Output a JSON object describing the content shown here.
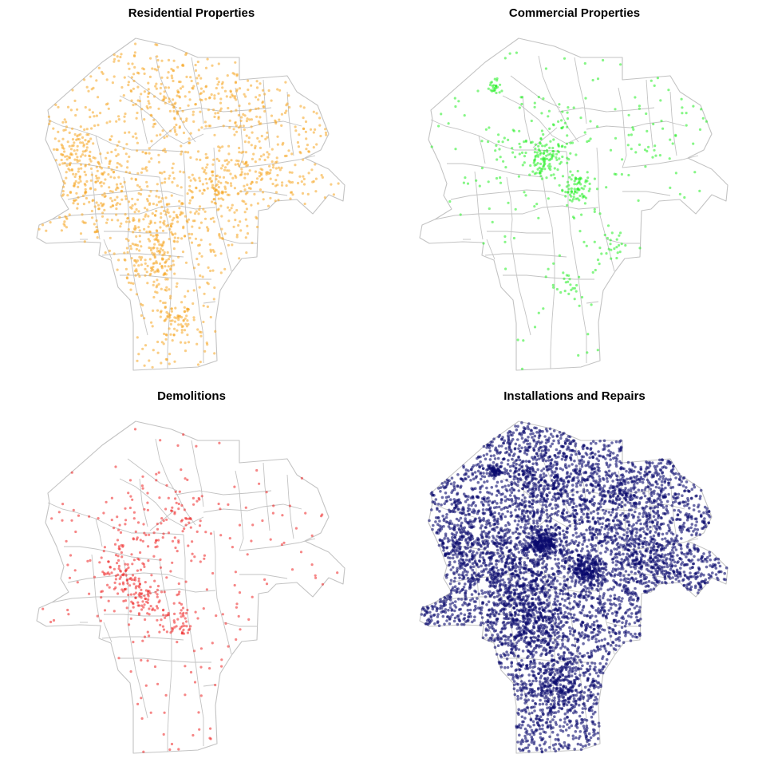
{
  "figure": {
    "panels": [
      {
        "id": "residential",
        "title": "Residential Properties",
        "color": "#F5A623",
        "opacity": 0.55,
        "density": "medium"
      },
      {
        "id": "commercial",
        "title": "Commercial Properties",
        "color": "#22EE22",
        "opacity": 0.55,
        "density": "low"
      },
      {
        "id": "demolitions",
        "title": "Demolitions",
        "color": "#EE2222",
        "opacity": 0.55,
        "density": "low"
      },
      {
        "id": "installations",
        "title": "Installations and Repairs",
        "color": "#0A0A6E",
        "opacity": 0.6,
        "density": "very high"
      }
    ],
    "boundary_color": "#C3C3C3"
  }
}
